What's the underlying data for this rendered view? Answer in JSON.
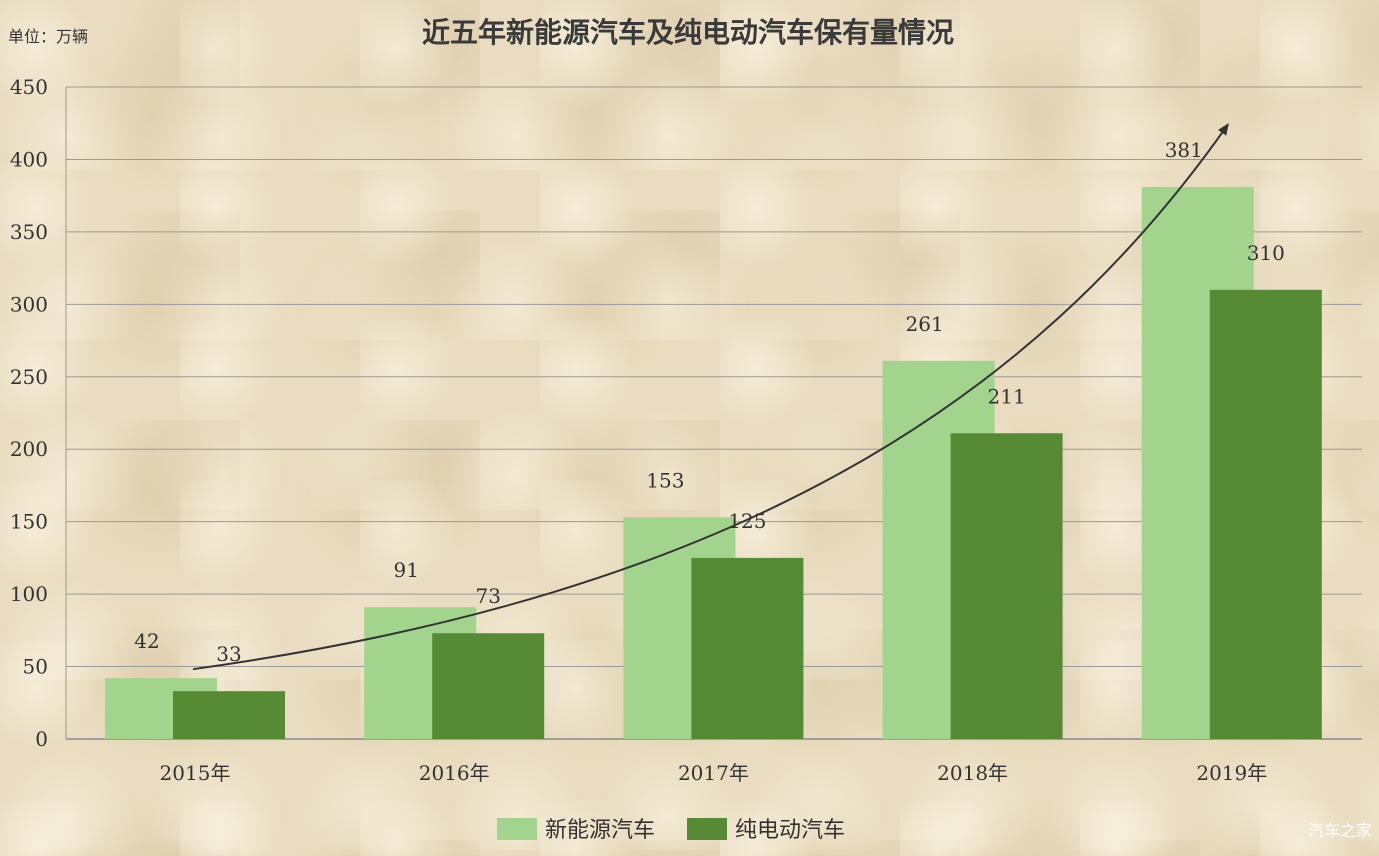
{
  "chart_data": {
    "type": "bar",
    "title": "近五年新能源汽车及纯电动汽车保有量情况",
    "unit_label": "单位：万辆",
    "categories": [
      "2015年",
      "2016年",
      "2017年",
      "2018年",
      "2019年"
    ],
    "series": [
      {
        "name": "新能源汽车",
        "values": [
          42,
          91,
          153,
          261,
          381
        ],
        "color": "#a3d48d"
      },
      {
        "name": "纯电动汽车",
        "values": [
          33,
          73,
          125,
          211,
          310
        ],
        "color": "#568a35"
      }
    ],
    "ylim": [
      0,
      450
    ],
    "yticks": [
      0,
      50,
      100,
      150,
      200,
      250,
      300,
      350,
      400,
      450
    ],
    "grid": true,
    "legend_position": "bottom",
    "trend_arrow": true
  },
  "watermark": "汽车之家"
}
